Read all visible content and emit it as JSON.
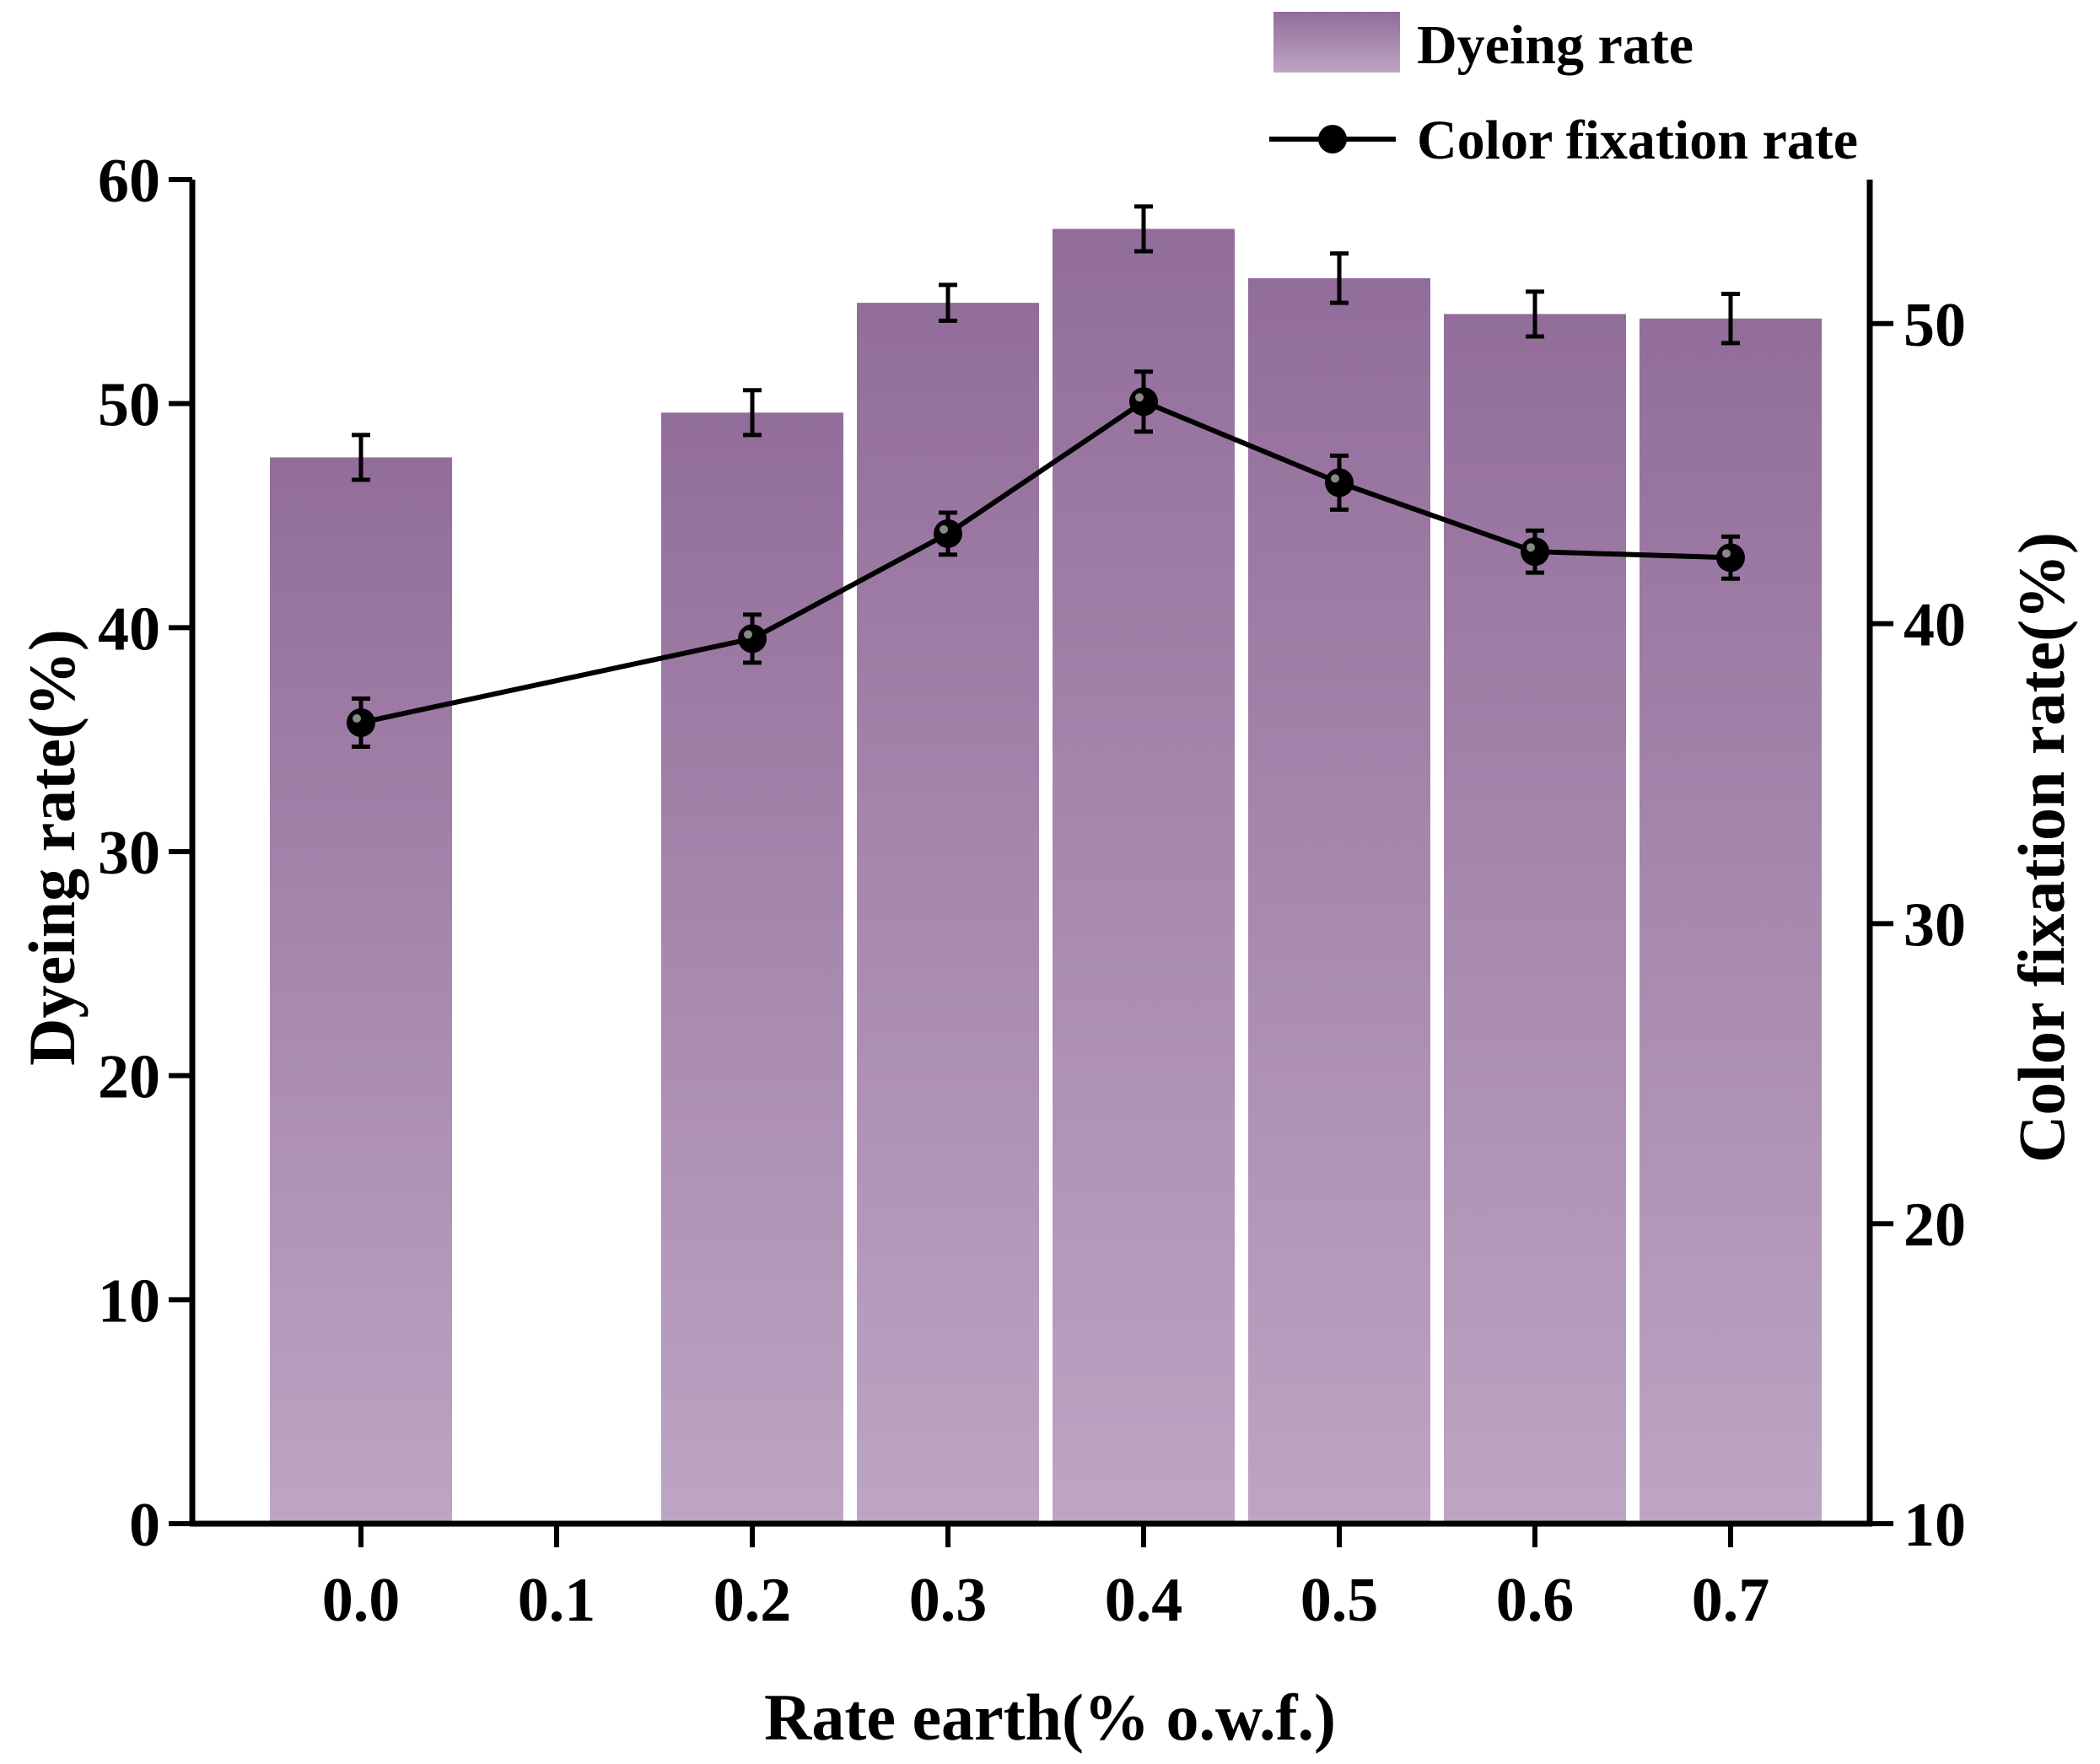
{
  "chart_data": {
    "type": "bar+line",
    "title": "",
    "xlabel": "Rate earth(% o.w.f.)",
    "ylabel_left": "Dyeing rate(%)",
    "ylabel_right": "Color fixation rate(%)",
    "x_ticks": [
      "0.0",
      "0.1",
      "0.2",
      "0.3",
      "0.4",
      "0.5",
      "0.6",
      "0.7"
    ],
    "ylim_left": [
      0,
      60
    ],
    "yticks_left": [
      "0",
      "10",
      "20",
      "30",
      "40",
      "50",
      "60"
    ],
    "ylim_right": [
      10,
      54.8
    ],
    "yticks_right": [
      "10",
      "20",
      "30",
      "40",
      "50"
    ],
    "legend": {
      "position": "top-right",
      "bar_label": "Dyeing rate",
      "line_label": "Color fixation rate"
    },
    "colors": {
      "bar_top": "#926d9a",
      "bar_bottom": "#bda5c3",
      "line": "#000000"
    },
    "series": [
      {
        "name": "Dyeing rate",
        "kind": "bar",
        "axis": "left",
        "x": [
          0.0,
          0.2,
          0.3,
          0.4,
          0.5,
          0.6,
          0.7
        ],
        "values": [
          47.6,
          49.6,
          54.5,
          57.8,
          55.6,
          54.0,
          53.8
        ],
        "errors": [
          1.0,
          1.0,
          0.8,
          1.0,
          1.1,
          1.0,
          1.1
        ]
      },
      {
        "name": "Color fixation rate",
        "kind": "line",
        "axis": "right",
        "x": [
          0.0,
          0.2,
          0.3,
          0.4,
          0.5,
          0.6,
          0.7
        ],
        "values": [
          36.7,
          39.5,
          43.0,
          47.4,
          44.7,
          42.4,
          42.2
        ],
        "errors": [
          0.8,
          0.8,
          0.7,
          1.0,
          0.9,
          0.7,
          0.7
        ]
      }
    ]
  }
}
